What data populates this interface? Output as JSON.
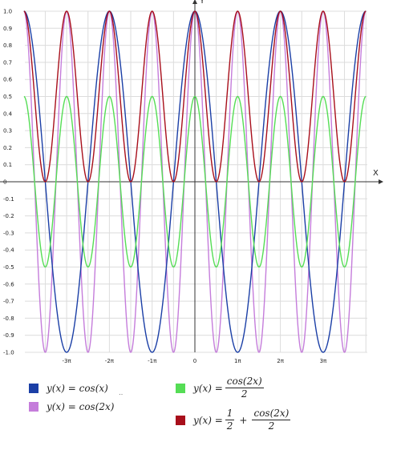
{
  "chart_data": {
    "type": "line",
    "title": "",
    "xlabel": "X",
    "ylabel": "Y",
    "xlim": [
      -12.2,
      13.0
    ],
    "ylim": [
      -1.0,
      1.0
    ],
    "x_ticks": [
      {
        "value": -9.42478,
        "label": "-3π"
      },
      {
        "value": -6.28319,
        "label": "-2π"
      },
      {
        "value": -3.14159,
        "label": "-1π"
      },
      {
        "value": 0,
        "label": "0"
      },
      {
        "value": 3.14159,
        "label": "1π"
      },
      {
        "value": 6.28319,
        "label": "2π"
      },
      {
        "value": 9.42478,
        "label": "3π"
      }
    ],
    "y_ticks": [
      "1.0",
      "0.9",
      "0.8",
      "0.7",
      "0.6",
      "0.5",
      "0.4",
      "0.3",
      "0.2",
      "0.1",
      "0",
      "-0.1",
      "-0.2",
      "-0.3",
      "-0.4",
      "-0.5",
      "-0.6",
      "-0.7",
      "-0.8",
      "-0.9",
      "-1.0"
    ],
    "x_range": [
      -12.566,
      12.566
    ],
    "grid": true,
    "legend_position": "bottom",
    "series": [
      {
        "expression": "cos(x)",
        "color": "#1b3fa6"
      },
      {
        "expression": "cos(2x)",
        "color": "#c57ddb"
      },
      {
        "expression": "cos(2x)/2",
        "color": "#55dd55"
      },
      {
        "expression": "1/2 + cos(2x)/2",
        "color": "#a80f1b"
      }
    ]
  },
  "legend": {
    "items": [
      {
        "lhs": "y(x) =",
        "rhs": "cos(x)"
      },
      {
        "lhs": "y(x) =",
        "rhs": "cos(2x)"
      },
      {
        "lhs": "y(x) =",
        "num": "cos(2x)",
        "den": "2"
      },
      {
        "lhs": "y(x) =",
        "num1": "1",
        "den1": "2",
        "op": "+",
        "num2": "cos(2x)",
        "den2": "2"
      }
    ],
    "stray_mark": "‥"
  }
}
